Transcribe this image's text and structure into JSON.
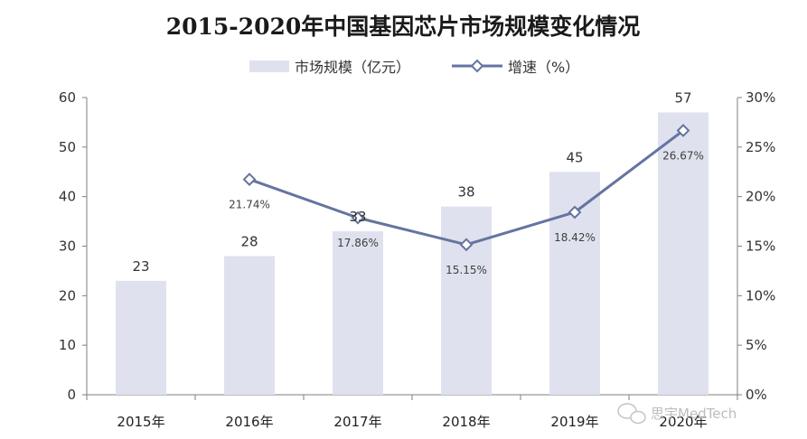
{
  "chart_data": {
    "type": "bar",
    "title": "2015-2020年中国基因芯片市场规模变化情况",
    "categories": [
      "2015年",
      "2016年",
      "2017年",
      "2018年",
      "2019年",
      "2020年"
    ],
    "series": [
      {
        "name": "市场规模（亿元）",
        "type": "bar",
        "axis": "left",
        "values": [
          23,
          28,
          33,
          38,
          45,
          57
        ],
        "labels": [
          "23",
          "28",
          "33",
          "38",
          "45",
          "57"
        ],
        "color": "#dfe2ee"
      },
      {
        "name": "增速（%）",
        "type": "line",
        "axis": "right",
        "values": [
          null,
          21.74,
          17.86,
          15.15,
          18.42,
          26.67
        ],
        "labels": [
          "",
          "21.74%",
          "17.86%",
          "15.15%",
          "18.42%",
          "26.67%"
        ],
        "color": "#6574a0"
      }
    ],
    "y_left": {
      "min": 0,
      "max": 60,
      "step": 10,
      "ticks": [
        "0",
        "10",
        "20",
        "30",
        "40",
        "50",
        "60"
      ]
    },
    "y_right": {
      "min": 0,
      "max": 30,
      "step": 5,
      "ticks": [
        "0%",
        "5%",
        "10%",
        "15%",
        "20%",
        "25%",
        "30%"
      ]
    },
    "grid": false,
    "legend_position": "top"
  },
  "watermark": {
    "text": "思宇MedTech",
    "icon": "wechat-icon"
  }
}
